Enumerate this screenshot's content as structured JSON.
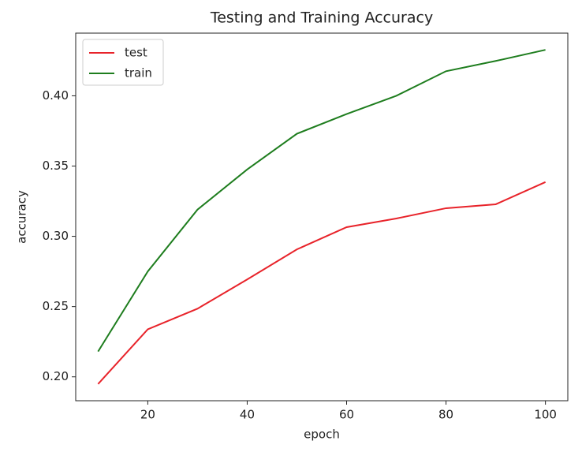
{
  "chart_data": {
    "type": "line",
    "title": "Testing and Training Accuracy",
    "x_label": "epoch",
    "y_label": "accuracy",
    "x": [
      10,
      20,
      30,
      40,
      50,
      60,
      70,
      80,
      90,
      100
    ],
    "series": [
      {
        "name": "test",
        "color": "#e8232a",
        "values": [
          0.1949,
          0.2338,
          0.2485,
          0.2693,
          0.2907,
          0.3065,
          0.3127,
          0.32,
          0.3228,
          0.3386
        ]
      },
      {
        "name": "train",
        "color": "#1e7d1e",
        "values": [
          0.218,
          0.275,
          0.319,
          0.3476,
          0.373,
          0.387,
          0.4,
          0.4175,
          0.4248,
          0.4327
        ]
      }
    ],
    "xlim": [
      5.5,
      104.5
    ],
    "xticks": [
      20,
      40,
      60,
      80,
      100
    ],
    "ylim": [
      0.183,
      0.4446
    ],
    "yticks": [
      {
        "value": 0.2,
        "label": "0.20"
      },
      {
        "value": 0.25,
        "label": "0.25"
      },
      {
        "value": 0.3,
        "label": "0.30"
      },
      {
        "value": 0.35,
        "label": "0.35"
      },
      {
        "value": 0.4,
        "label": "0.40"
      }
    ],
    "legend": "upper left"
  }
}
